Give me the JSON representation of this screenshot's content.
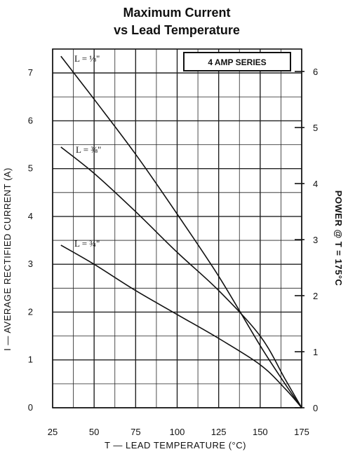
{
  "chart_data": {
    "type": "line",
    "title": [
      "Maximum Current",
      "vs Lead Temperature"
    ],
    "xlabel": "T — LEAD TEMPERATURE (°C)",
    "ylabel": "I — AVERAGE RECTIFIED CURRENT (A)",
    "ylabel_right": "POWER @ T = 175°C",
    "series_tag": "4 AMP SERIES",
    "xlim": [
      25,
      175
    ],
    "ylim": [
      0,
      7.5
    ],
    "ylim_right": [
      0,
      6.4
    ],
    "x_ticks": [
      "25",
      "50",
      "75",
      "100",
      "125",
      "150",
      "175"
    ],
    "y_ticks": [
      "0",
      "1",
      "2",
      "3",
      "4",
      "5",
      "6",
      "7"
    ],
    "y_right_ticks": [
      "0",
      "1",
      "2",
      "3",
      "4",
      "5",
      "6"
    ],
    "grid": true,
    "series": [
      {
        "name": "L = 1/8\"",
        "label": "L = ⅛\"",
        "x": [
          30,
          50,
          75,
          100,
          125,
          150,
          165,
          175
        ],
        "y": [
          7.35,
          6.45,
          5.3,
          4.05,
          2.75,
          1.3,
          0.5,
          0
        ]
      },
      {
        "name": "L = 3/8\"",
        "label": "L = ⅜\"",
        "x": [
          30,
          50,
          75,
          100,
          125,
          150,
          165,
          175
        ],
        "y": [
          5.45,
          4.9,
          4.1,
          3.25,
          2.45,
          1.5,
          0.6,
          0
        ]
      },
      {
        "name": "L = 3/4\"",
        "label": "L = ¾\"",
        "x": [
          30,
          50,
          75,
          100,
          125,
          150,
          165,
          175
        ],
        "y": [
          3.4,
          3.0,
          2.45,
          1.95,
          1.45,
          0.9,
          0.4,
          0
        ]
      }
    ]
  }
}
